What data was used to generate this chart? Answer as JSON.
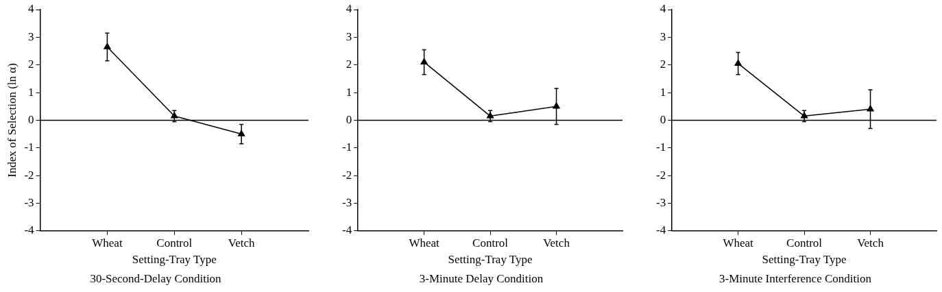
{
  "chart_data": [
    {
      "type": "line",
      "title": "30-Second-Delay Condition",
      "xlabel": "Setting-Tray Type",
      "ylabel": "Index of Selection (ln α)",
      "categories": [
        "Wheat",
        "Control",
        "Vetch"
      ],
      "series": [
        {
          "color": "#000000",
          "values": [
            2.65,
            0.15,
            -0.5
          ],
          "errors": [
            0.5,
            0.2,
            0.35
          ]
        }
      ],
      "ylim": [
        -4,
        4
      ],
      "yticks": [
        -4,
        -3,
        -2,
        -1,
        0,
        1,
        2,
        3,
        4
      ],
      "ref_lines": [
        {
          "axis": "y",
          "value": 0,
          "color": "#000000"
        }
      ],
      "grid": false,
      "legend": false,
      "marker": "triangle",
      "line_style": "solid"
    },
    {
      "type": "line",
      "title": "3-Minute Delay Condition",
      "xlabel": "Setting-Tray Type",
      "categories": [
        "Wheat",
        "Control",
        "Vetch"
      ],
      "series": [
        {
          "color": "#000000",
          "values": [
            2.1,
            0.15,
            0.5
          ],
          "errors": [
            0.45,
            0.2,
            0.65
          ]
        }
      ],
      "ylim": [
        -4,
        4
      ],
      "yticks": [
        -4,
        -3,
        -2,
        -1,
        0,
        1,
        2,
        3,
        4
      ],
      "ref_lines": [
        {
          "axis": "y",
          "value": 0,
          "color": "#000000"
        }
      ],
      "grid": false,
      "legend": false,
      "marker": "triangle",
      "line_style": "solid"
    },
    {
      "type": "line",
      "title": "3-Minute Interference Condition",
      "xlabel": "Setting-Tray Type",
      "categories": [
        "Wheat",
        "Control",
        "Vetch"
      ],
      "series": [
        {
          "color": "#000000",
          "values": [
            2.05,
            0.15,
            0.4
          ],
          "errors": [
            0.4,
            0.2,
            0.7
          ]
        }
      ],
      "ylim": [
        -4,
        4
      ],
      "yticks": [
        -4,
        -3,
        -2,
        -1,
        0,
        1,
        2,
        3,
        4
      ],
      "ref_lines": [
        {
          "axis": "y",
          "value": 0,
          "color": "#000000"
        }
      ],
      "grid": false,
      "legend": false,
      "marker": "triangle",
      "line_style": "solid"
    }
  ]
}
